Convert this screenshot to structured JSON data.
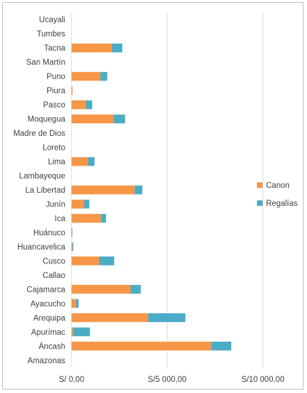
{
  "chart_data": {
    "type": "bar",
    "orientation": "horizontal",
    "stacked": true,
    "categories": [
      "Amazonas",
      "Áncash",
      "Apurímac",
      "Arequipa",
      "Ayacucho",
      "Cajamarca",
      "Callao",
      "Cusco",
      "Huancavelica",
      "Huánuco",
      "Ica",
      "Junín",
      "La Libertad",
      "Lambayeque",
      "Lima",
      "Loreto",
      "Madre de Dios",
      "Moquegua",
      "Pasco",
      "Piura",
      "Puno",
      "San Martín",
      "Tacna",
      "Tumbes",
      "Ucayali"
    ],
    "series": [
      {
        "name": "Canon",
        "color": "#f79646",
        "values": [
          0,
          7300,
          80,
          4000,
          230,
          3100,
          0,
          1450,
          40,
          15,
          1550,
          650,
          3300,
          0,
          850,
          0,
          0,
          2200,
          750,
          50,
          1500,
          0,
          2100,
          0,
          0
        ]
      },
      {
        "name": "Regalías",
        "color": "#4bacc6",
        "values": [
          0,
          1050,
          880,
          1950,
          140,
          520,
          0,
          780,
          50,
          25,
          250,
          280,
          400,
          0,
          350,
          0,
          0,
          600,
          330,
          0,
          370,
          0,
          550,
          0,
          0
        ]
      }
    ],
    "x_ticks": [
      "S/ 0,00",
      "S/5 000,00",
      "S/10 000,00"
    ],
    "x_tick_values": [
      0,
      5000,
      10000
    ],
    "xlim": [
      0,
      11000
    ],
    "grid": "vertical",
    "legend": "right",
    "title": "",
    "xlabel": "",
    "ylabel": ""
  }
}
